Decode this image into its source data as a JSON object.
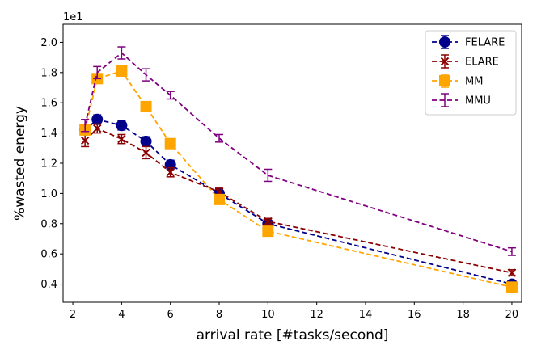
{
  "chart_data": {
    "type": "line",
    "title": "",
    "xlabel": "arrival rate [#tasks/second]",
    "ylabel": "%wasted energy",
    "y_offset_text": "1e1",
    "xlim": [
      1.6,
      20.4
    ],
    "ylim": [
      0.28,
      2.12
    ],
    "xticks": [
      2,
      4,
      6,
      8,
      10,
      12,
      14,
      16,
      18,
      20
    ],
    "yticks": [
      0.4,
      0.6,
      0.8,
      1.0,
      1.2,
      1.4,
      1.6,
      1.8,
      2.0
    ],
    "xtick_labels": [
      "2",
      "4",
      "6",
      "8",
      "10",
      "12",
      "14",
      "16",
      "18",
      "20"
    ],
    "ytick_labels": [
      "0.4",
      "0.6",
      "0.8",
      "1.0",
      "1.2",
      "1.4",
      "1.6",
      "1.8",
      "2.0"
    ],
    "legend_position": "top-right",
    "x": [
      2.5,
      3,
      4,
      5,
      6,
      8,
      10,
      20
    ],
    "series": [
      {
        "name": "FELARE",
        "color": "#00008b",
        "marker": "circle",
        "values": [
          1.42,
          1.49,
          1.45,
          1.345,
          1.19,
          1.0,
          0.8,
          0.4
        ],
        "errors": [
          0.03,
          0.03,
          0.03,
          0.03,
          0.03,
          0.02,
          0.02,
          0.02
        ]
      },
      {
        "name": "ELARE",
        "color": "#8b0000",
        "marker": "x",
        "values": [
          1.35,
          1.43,
          1.36,
          1.27,
          1.14,
          1.01,
          0.815,
          0.475
        ],
        "errors": [
          0.04,
          0.03,
          0.03,
          0.04,
          0.03,
          0.025,
          0.02,
          0.02
        ]
      },
      {
        "name": "MM",
        "color": "#ffa500",
        "marker": "square",
        "values": [
          1.42,
          1.76,
          1.81,
          1.575,
          1.33,
          0.96,
          0.75,
          0.38
        ],
        "errors": [
          0.02,
          0.03,
          0.02,
          0.02,
          0.02,
          0.02,
          0.02,
          0.02
        ]
      },
      {
        "name": "MMU",
        "color": "#800080",
        "marker": "none",
        "values": [
          1.45,
          1.8,
          1.93,
          1.785,
          1.65,
          1.365,
          1.12,
          0.615
        ],
        "errors": [
          0.04,
          0.04,
          0.04,
          0.04,
          0.025,
          0.025,
          0.04,
          0.025
        ]
      }
    ]
  }
}
